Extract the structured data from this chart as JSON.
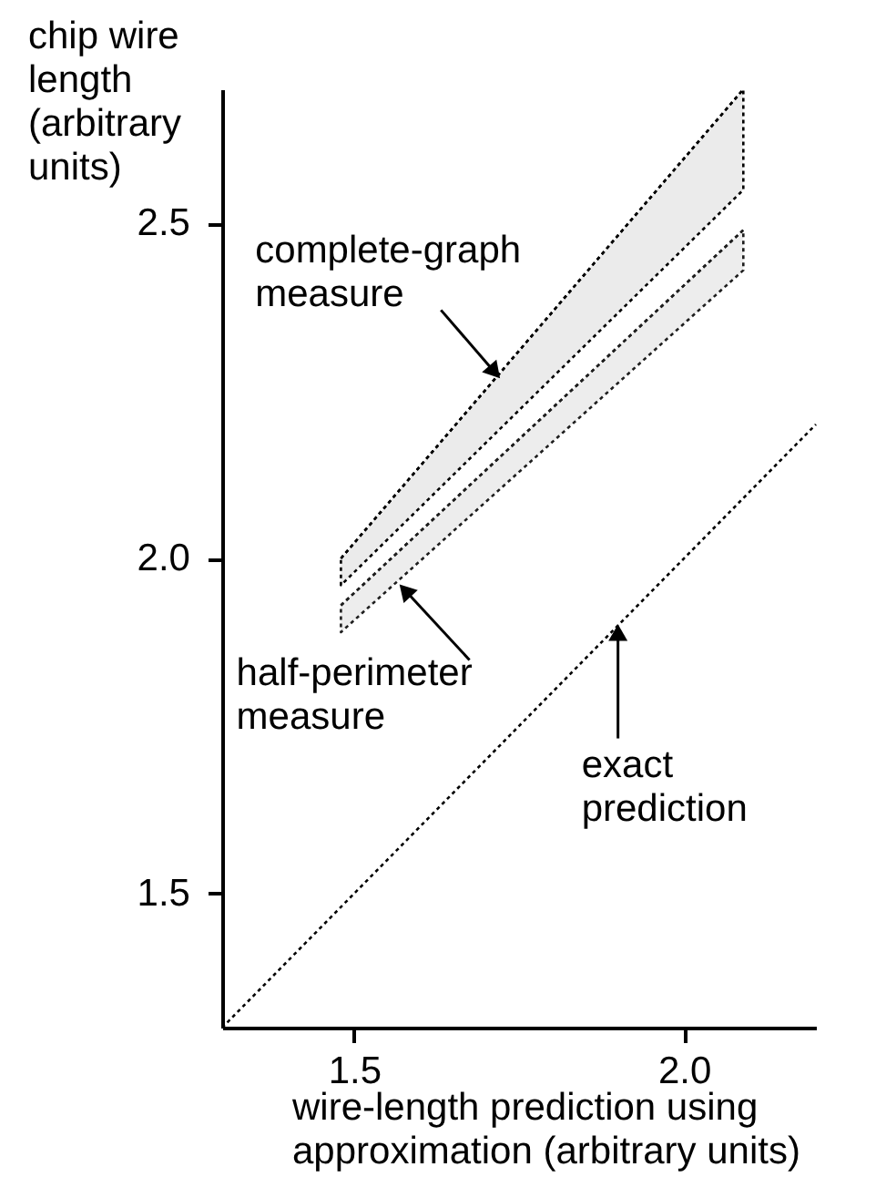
{
  "chart_data": {
    "type": "line",
    "line_style": "dotted",
    "xlabel": "wire-length prediction using\napproximation (arbitrary units)",
    "ylabel": "chip wire\nlength\n(arbitrary\nunits)",
    "xlim": [
      1.3,
      2.2
    ],
    "ylim": [
      1.3,
      2.7
    ],
    "xticks": [
      1.5,
      {
        "value": 2.0,
        "label": "2.0"
      }
    ],
    "yticks": [
      1.5,
      {
        "value": 2.0,
        "label": "2.0"
      },
      2.5
    ],
    "grid": false,
    "series": [
      {
        "color": "#000000",
        "x": [
          1.48,
          2.09
        ],
        "values": [
          2.0,
          2.7
        ],
        "lower": [
          1.96,
          2.55
        ],
        "upper": [
          2.0,
          2.7
        ]
      },
      {
        "color": "#1e1e1e",
        "x": [
          1.48,
          2.09
        ],
        "values": [
          1.93,
          2.49
        ],
        "lower": [
          1.89,
          2.43
        ],
        "upper": [
          1.93,
          2.49
        ]
      },
      {
        "color": "#000000",
        "x": [
          1.3,
          2.2
        ],
        "values": [
          1.3,
          2.2
        ]
      }
    ],
    "annotations": [
      {
        "text": "complete-graph\nmeasure",
        "x": 1.72,
        "y": 2.27
      },
      {
        "text": "half-perimeter\nmeasure",
        "x": 1.57,
        "y": 1.96
      },
      {
        "text": "exact\nprediction",
        "x": 1.9,
        "y": 1.9
      }
    ]
  }
}
